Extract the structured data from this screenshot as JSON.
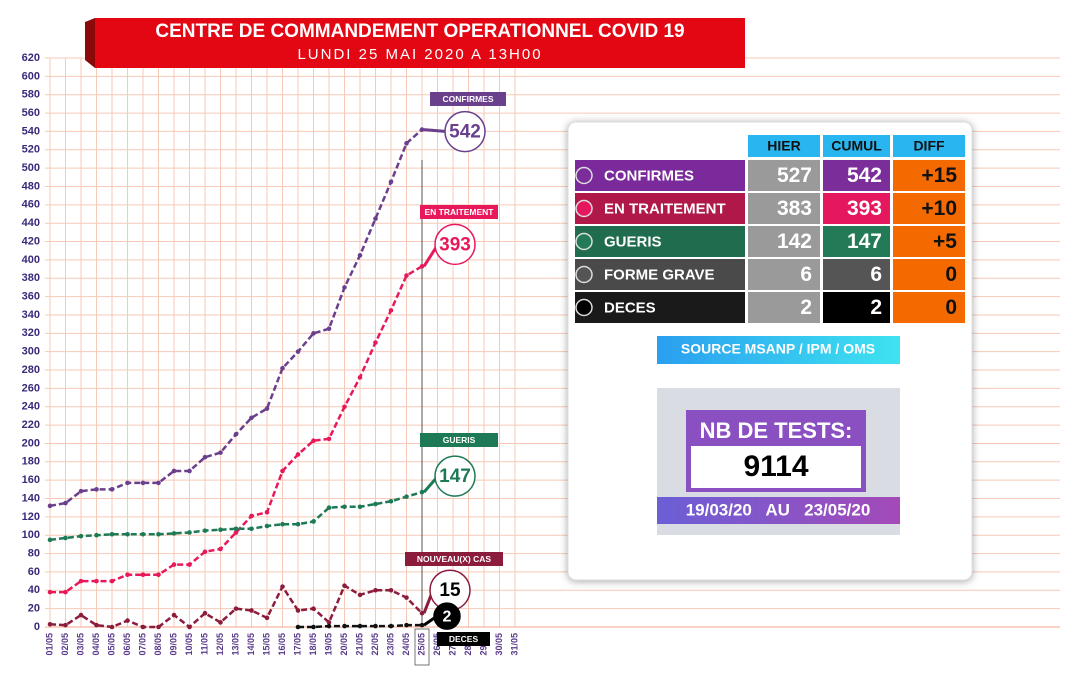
{
  "header": {
    "title": "CENTRE DE COMMANDEMENT OPERATIONNEL COVID 19",
    "subtitle": "LUNDI 25 MAI 2020 A 13H00"
  },
  "chart_data": {
    "type": "line",
    "categories": [
      "01/05",
      "02/05",
      "03/05",
      "04/05",
      "05/05",
      "06/05",
      "07/05",
      "08/05",
      "09/05",
      "10/05",
      "11/05",
      "12/05",
      "13/05",
      "14/05",
      "15/05",
      "16/05",
      "17/05",
      "18/05",
      "19/05",
      "20/05",
      "21/05",
      "22/05",
      "23/05",
      "24/05",
      "25/05",
      "26/05",
      "27/05",
      "28/05",
      "29/05",
      "30/05",
      "31/05"
    ],
    "series": [
      {
        "name": "CONFIRMES",
        "color": "#6a3f8c",
        "values": [
          132,
          135,
          148,
          150,
          150,
          157,
          157,
          157,
          170,
          170,
          185,
          190,
          210,
          228,
          238,
          282,
          300,
          320,
          325,
          370,
          405,
          445,
          485,
          527,
          542,
          null,
          null,
          null,
          null,
          null,
          null
        ]
      },
      {
        "name": "EN TRAITEMENT",
        "color": "#e8195a",
        "values": [
          38,
          38,
          50,
          50,
          50,
          57,
          57,
          57,
          68,
          68,
          82,
          85,
          103,
          121,
          125,
          170,
          188,
          203,
          205,
          240,
          272,
          310,
          345,
          383,
          393,
          null,
          null,
          null,
          null,
          null,
          null
        ]
      },
      {
        "name": "GUERIS",
        "color": "#1d7a55",
        "values": [
          95,
          97,
          99,
          100,
          101,
          101,
          101,
          101,
          102,
          103,
          105,
          106,
          107,
          107,
          110,
          112,
          112,
          115,
          130,
          131,
          131,
          134,
          137,
          142,
          147,
          null,
          null,
          null,
          null,
          null,
          null
        ]
      },
      {
        "name": "NOUVEAU(X) CAS",
        "color": "#8b1c3c",
        "values": [
          3,
          2,
          13,
          2,
          0,
          7,
          0,
          0,
          13,
          0,
          15,
          5,
          20,
          18,
          10,
          44,
          18,
          20,
          5,
          45,
          35,
          40,
          40,
          32,
          15,
          null,
          null,
          null,
          null,
          null,
          null
        ]
      },
      {
        "name": "DECES",
        "color": "#111111",
        "values": [
          null,
          null,
          null,
          null,
          null,
          null,
          null,
          null,
          null,
          null,
          null,
          null,
          null,
          null,
          null,
          null,
          0,
          0,
          1,
          1,
          1,
          1,
          1,
          2,
          2,
          null,
          null,
          null,
          null,
          null,
          null
        ]
      }
    ],
    "ylim": [
      0,
      620
    ],
    "yticks": [
      0,
      20,
      40,
      60,
      80,
      100,
      120,
      140,
      160,
      180,
      200,
      220,
      240,
      260,
      280,
      300,
      320,
      340,
      360,
      380,
      400,
      420,
      440,
      460,
      480,
      500,
      520,
      540,
      560,
      580,
      600,
      620
    ],
    "grid": true
  },
  "table": {
    "header": [
      "HIER",
      "CUMUL",
      "DIFF"
    ],
    "rows": [
      [
        "CONFIRMES",
        527,
        542,
        "+15"
      ],
      [
        "EN TRAITEMENT",
        383,
        393,
        "+10"
      ],
      [
        "GUERIS",
        142,
        147,
        "+5"
      ],
      [
        "FORME GRAVE",
        6,
        6,
        0
      ],
      [
        "DECES",
        2,
        2,
        0
      ]
    ]
  },
  "source": "SOURCE MSANP / IPM / OMS",
  "tests": {
    "title": "NB DE TESTS:",
    "value": 9114,
    "period": "19/03/20   AU   23/05/20"
  }
}
